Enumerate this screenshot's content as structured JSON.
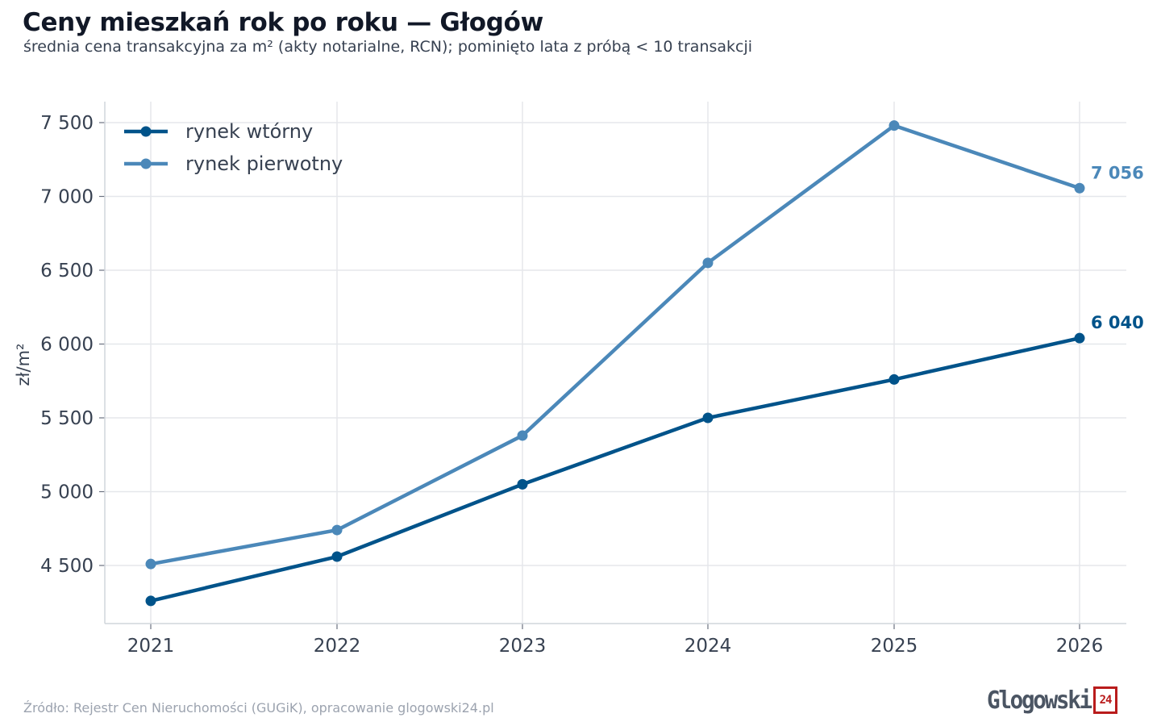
{
  "header": {
    "title": "Ceny mieszkań rok po roku — Głogów",
    "subtitle": "średnia cena transakcyjna za m² (akty notarialne, RCN); pominięto lata z próbą < 10 transakcji"
  },
  "footer": {
    "source": "Źródło: Rejestr Cen Nieruchomości (GUGiK), opracowanie glogowski24.pl",
    "logo_text": "Glogowski",
    "logo_badge": "24"
  },
  "colors": {
    "secondary": "#00538a",
    "primary": "#4b88b9",
    "grid": "#e5e7eb",
    "logo_red": "#b91c1c"
  },
  "chart_data": {
    "type": "line",
    "title": "Ceny mieszkań rok po roku — Głogów",
    "subtitle": "średnia cena transakcyjna za m² (akty notarialne, RCN); pominięto lata z próbą < 10 transakcji",
    "xlabel": "",
    "ylabel": "zł/m²",
    "x": [
      2021,
      2022,
      2023,
      2024,
      2025,
      2026
    ],
    "x_tick_labels": [
      "2021",
      "2022",
      "2023",
      "2024",
      "2025",
      "2026"
    ],
    "y_ticks": [
      4500,
      5000,
      5500,
      6000,
      6500,
      7000,
      7500
    ],
    "y_tick_labels": [
      "4 500",
      "5 000",
      "5 500",
      "6 000",
      "6 500",
      "7 000",
      "7 500"
    ],
    "ylim": [
      4200,
      7640
    ],
    "grid": true,
    "legend_position": "top-left",
    "series": [
      {
        "name": "rynek wtórny",
        "color": "#00538a",
        "values": [
          4260,
          4560,
          5050,
          5500,
          5760,
          6040
        ],
        "end_label": "6 040"
      },
      {
        "name": "rynek pierwotny",
        "color": "#4b88b9",
        "values": [
          4510,
          4740,
          5380,
          6550,
          7480,
          7056
        ],
        "end_label": "7 056"
      }
    ]
  }
}
